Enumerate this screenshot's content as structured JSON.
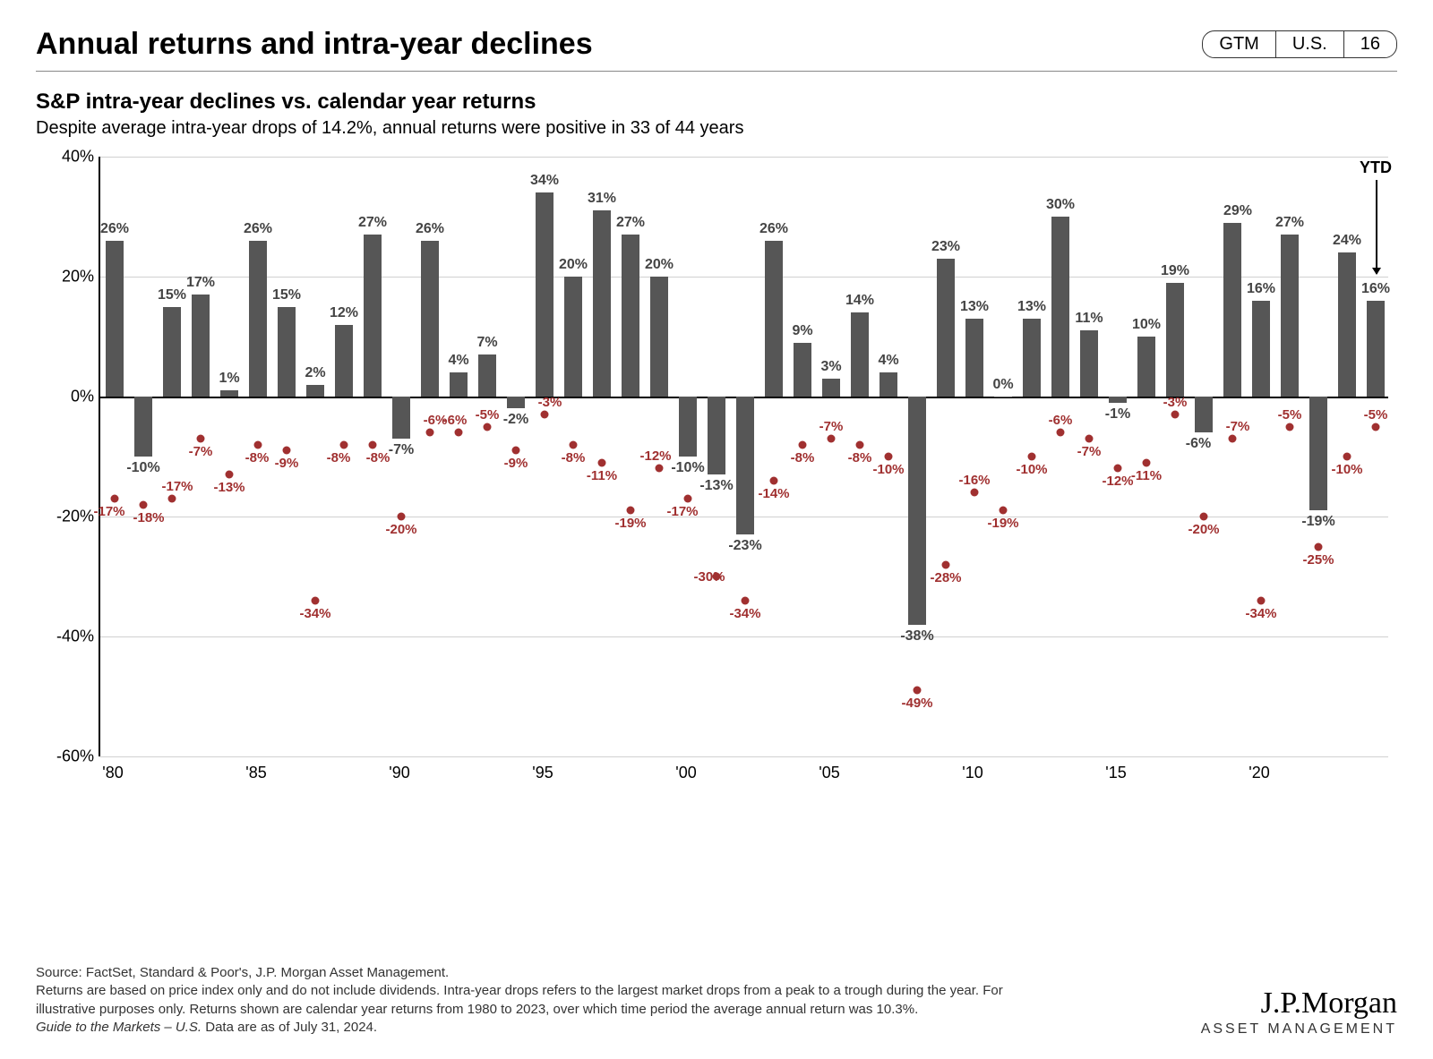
{
  "header": {
    "title": "Annual returns and intra-year declines",
    "pill": {
      "a": "GTM",
      "b": "U.S.",
      "c": "16"
    }
  },
  "chart": {
    "title": "S&P intra-year declines vs. calendar year returns",
    "subtitle": "Despite average intra-year drops of 14.2%, annual returns were positive in 33 of 44 years",
    "ytd_label": "YTD",
    "y_min": -60,
    "y_max": 40,
    "y_ticks": [
      40,
      20,
      0,
      -20,
      -40,
      -60
    ],
    "x_ticks": [
      {
        "year": 1980,
        "label": "'80"
      },
      {
        "year": 1985,
        "label": "'85"
      },
      {
        "year": 1990,
        "label": "'90"
      },
      {
        "year": 1995,
        "label": "'95"
      },
      {
        "year": 2000,
        "label": "'00"
      },
      {
        "year": 2005,
        "label": "'05"
      },
      {
        "year": 2010,
        "label": "'10"
      },
      {
        "year": 2015,
        "label": "'15"
      },
      {
        "year": 2020,
        "label": "'20"
      }
    ],
    "bar_color": "#565656",
    "dot_color": "#a03030",
    "grid_color": "#d0d0d0",
    "background_color": "#ffffff",
    "data": [
      {
        "year": 1980,
        "ret": 26,
        "drop": -17
      },
      {
        "year": 1981,
        "ret": -10,
        "drop": -18
      },
      {
        "year": 1982,
        "ret": 15,
        "drop": -17
      },
      {
        "year": 1983,
        "ret": 17,
        "drop": -7
      },
      {
        "year": 1984,
        "ret": 1,
        "drop": -13
      },
      {
        "year": 1985,
        "ret": 26,
        "drop": -8
      },
      {
        "year": 1986,
        "ret": 15,
        "drop": -9
      },
      {
        "year": 1987,
        "ret": 2,
        "drop": -34
      },
      {
        "year": 1988,
        "ret": 12,
        "drop": -8
      },
      {
        "year": 1989,
        "ret": 27,
        "drop": -8
      },
      {
        "year": 1990,
        "ret": -7,
        "drop": -20
      },
      {
        "year": 1991,
        "ret": 26,
        "drop": -6
      },
      {
        "year": 1992,
        "ret": 4,
        "drop": -6
      },
      {
        "year": 1993,
        "ret": 7,
        "drop": -5
      },
      {
        "year": 1994,
        "ret": -2,
        "drop": -9
      },
      {
        "year": 1995,
        "ret": 34,
        "drop": -3
      },
      {
        "year": 1996,
        "ret": 20,
        "drop": -8
      },
      {
        "year": 1997,
        "ret": 31,
        "drop": -11
      },
      {
        "year": 1998,
        "ret": 27,
        "drop": -19
      },
      {
        "year": 1999,
        "ret": 20,
        "drop": -12
      },
      {
        "year": 2000,
        "ret": -10,
        "drop": -17
      },
      {
        "year": 2001,
        "ret": -13,
        "drop": -30
      },
      {
        "year": 2002,
        "ret": -23,
        "drop": -34
      },
      {
        "year": 2003,
        "ret": 26,
        "drop": -14
      },
      {
        "year": 2004,
        "ret": 9,
        "drop": -8
      },
      {
        "year": 2005,
        "ret": 3,
        "drop": -7
      },
      {
        "year": 2006,
        "ret": 14,
        "drop": -8
      },
      {
        "year": 2007,
        "ret": 4,
        "drop": -10
      },
      {
        "year": 2008,
        "ret": -38,
        "drop": -49
      },
      {
        "year": 2009,
        "ret": 23,
        "drop": -28
      },
      {
        "year": 2010,
        "ret": 13,
        "drop": -16
      },
      {
        "year": 2011,
        "ret": 0,
        "drop": -19
      },
      {
        "year": 2012,
        "ret": 13,
        "drop": -10
      },
      {
        "year": 2013,
        "ret": 30,
        "drop": -6
      },
      {
        "year": 2014,
        "ret": 11,
        "drop": -7
      },
      {
        "year": 2015,
        "ret": -1,
        "drop": -12
      },
      {
        "year": 2016,
        "ret": 10,
        "drop": -11
      },
      {
        "year": 2017,
        "ret": 19,
        "drop": -3
      },
      {
        "year": 2018,
        "ret": -6,
        "drop": -20
      },
      {
        "year": 2019,
        "ret": 29,
        "drop": -7
      },
      {
        "year": 2020,
        "ret": 16,
        "drop": -34
      },
      {
        "year": 2021,
        "ret": 27,
        "drop": -5
      },
      {
        "year": 2022,
        "ret": -19,
        "drop": -25
      },
      {
        "year": 2023,
        "ret": 24,
        "drop": -10
      },
      {
        "year": 2024,
        "ret": 16,
        "drop": -5,
        "ytd": true
      }
    ],
    "dot_label_offsets": {
      "1980": {
        "dx": -6,
        "dy": 6
      },
      "1981": {
        "dx": 6,
        "dy": 6
      },
      "1982": {
        "dx": 6,
        "dy": -22
      },
      "1983": {
        "dx": 0,
        "dy": 6
      },
      "1984": {
        "dx": 0,
        "dy": 6
      },
      "1985": {
        "dx": -1,
        "dy": 6
      },
      "1986": {
        "dx": 0,
        "dy": 6
      },
      "1987": {
        "dx": 0,
        "dy": 6
      },
      "1988": {
        "dx": -6,
        "dy": 6
      },
      "1989": {
        "dx": 6,
        "dy": 6
      },
      "1990": {
        "dx": 0,
        "dy": 6
      },
      "1991": {
        "dx": 6,
        "dy": -22
      },
      "1992": {
        "dx": -4,
        "dy": -22
      },
      "1993": {
        "dx": 0,
        "dy": -22
      },
      "1994": {
        "dx": 0,
        "dy": 6
      },
      "1995": {
        "dx": 6,
        "dy": -22
      },
      "1996": {
        "dx": 0,
        "dy": 6
      },
      "1997": {
        "dx": 0,
        "dy": 6
      },
      "1998": {
        "dx": 0,
        "dy": 6
      },
      "1999": {
        "dx": -4,
        "dy": -22
      },
      "2000": {
        "dx": -6,
        "dy": 6
      },
      "2001": {
        "dx": -8,
        "dy": -8
      },
      "2002": {
        "dx": 0,
        "dy": 6
      },
      "2003": {
        "dx": 0,
        "dy": 6
      },
      "2004": {
        "dx": 0,
        "dy": 6
      },
      "2005": {
        "dx": 0,
        "dy": -22
      },
      "2006": {
        "dx": 0,
        "dy": 6
      },
      "2007": {
        "dx": 0,
        "dy": 6
      },
      "2008": {
        "dx": 0,
        "dy": 6
      },
      "2009": {
        "dx": 0,
        "dy": 6
      },
      "2010": {
        "dx": 0,
        "dy": -22
      },
      "2011": {
        "dx": 0,
        "dy": 6
      },
      "2012": {
        "dx": 0,
        "dy": 6
      },
      "2013": {
        "dx": 0,
        "dy": -22
      },
      "2014": {
        "dx": 0,
        "dy": 6
      },
      "2015": {
        "dx": 0,
        "dy": 6
      },
      "2016": {
        "dx": 0,
        "dy": 6
      },
      "2017": {
        "dx": 0,
        "dy": -22
      },
      "2018": {
        "dx": 0,
        "dy": 6
      },
      "2019": {
        "dx": 6,
        "dy": -22
      },
      "2020": {
        "dx": 0,
        "dy": 6
      },
      "2021": {
        "dx": 0,
        "dy": -22
      },
      "2022": {
        "dx": 0,
        "dy": 6
      },
      "2023": {
        "dx": 0,
        "dy": 6
      },
      "2024": {
        "dx": 0,
        "dy": -22
      }
    },
    "bar_label_offsets": {
      "2018": {
        "dx": -6
      },
      "2019": {
        "dx": 6
      }
    }
  },
  "footer": {
    "line1": "Source: FactSet, Standard & Poor's, J.P. Morgan Asset Management.",
    "line2": "Returns are based on price index only and do not include dividends. Intra-year drops refers to the largest market drops from a peak to a trough during the year. For illustrative purposes only. Returns shown are calendar year returns from 1980 to 2023, over which time period the average annual return was 10.3%.",
    "line3_italic": "Guide to the Markets – U.S.",
    "line3_rest": " Data are as of July 31, 2024.",
    "brand_main": "J.P.Morgan",
    "brand_sub": "ASSET MANAGEMENT"
  }
}
